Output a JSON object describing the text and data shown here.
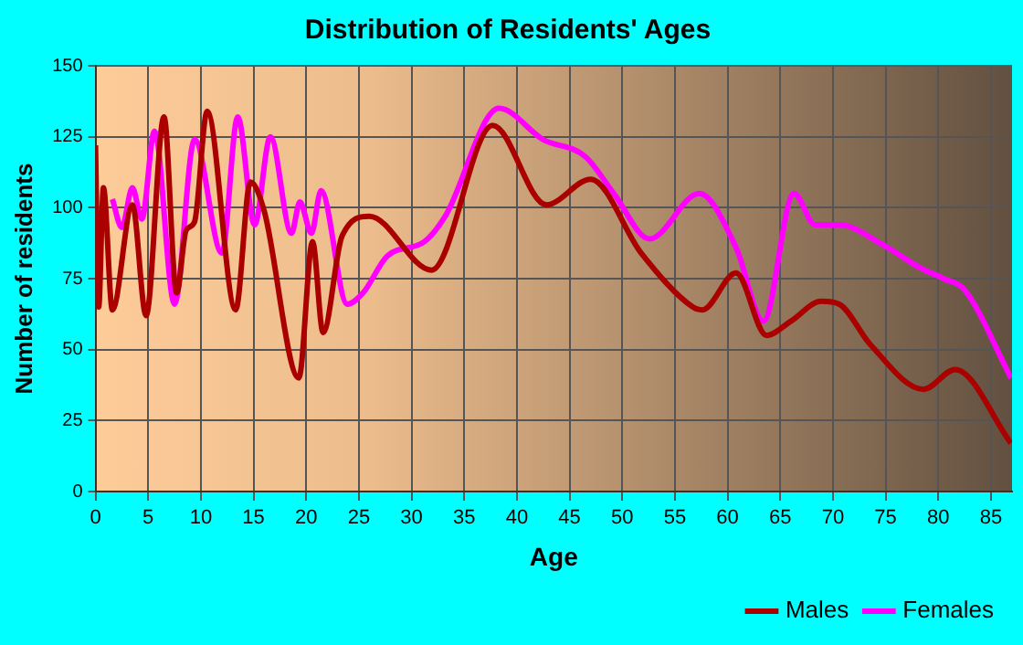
{
  "chart_data": {
    "type": "line",
    "title": "Distribution of Residents' Ages",
    "xlabel": "Age",
    "ylabel": "Number of residents",
    "xlim": [
      0,
      87
    ],
    "xticks": [
      0,
      5,
      10,
      15,
      20,
      25,
      30,
      35,
      40,
      45,
      50,
      55,
      60,
      65,
      70,
      75,
      80,
      85
    ],
    "ylim": [
      0,
      150
    ],
    "yticks": [
      0,
      25,
      50,
      75,
      100,
      125,
      150
    ],
    "grid": true,
    "legend": "bottom right",
    "marker": "none",
    "line_style": "solid",
    "series": [
      {
        "name": "Males",
        "color": "#aa0000",
        "x": [
          0,
          0.3,
          0.75,
          1.6,
          3.5,
          4.8,
          6.5,
          7.7,
          8.6,
          9.4,
          10.6,
          13.3,
          14.7,
          16,
          19.3,
          20.6,
          21.6,
          23.4,
          26,
          31.9,
          37.7,
          42.8,
          47,
          51.8,
          56.7,
          57.6,
          60.8,
          63.7,
          66,
          68.9,
          70.6,
          73.5,
          78.6,
          81.6,
          86.9
        ],
        "values": [
          122,
          65,
          107,
          64,
          101,
          62,
          132,
          70,
          92,
          95,
          134,
          64,
          109,
          99,
          40,
          88,
          56,
          90,
          97,
          78,
          129,
          101,
          110,
          84,
          65,
          64,
          77,
          55,
          60,
          67,
          66,
          52,
          36,
          43,
          17
        ]
      },
      {
        "name": "Females",
        "color": "#ff00ff",
        "x": [
          1.6,
          2.5,
          3.5,
          4.4,
          5.6,
          7.5,
          9.4,
          12,
          13.5,
          15.1,
          16.6,
          18.6,
          19.4,
          20.5,
          21.4,
          23.9,
          25.4,
          27.7,
          31.2,
          33.2,
          38.3,
          42.5,
          46.5,
          49.2,
          52.6,
          57.3,
          60.8,
          63.4,
          66.3,
          68.3,
          70.6,
          74.7,
          78.2,
          80.5,
          82.5,
          86.9
        ],
        "values": [
          103,
          93,
          107,
          96,
          127,
          66,
          124,
          84,
          132,
          94,
          125,
          91,
          102,
          91,
          106,
          66,
          70,
          83,
          88,
          97,
          135,
          124,
          118,
          105,
          89,
          105,
          86,
          60,
          105,
          94,
          94,
          87,
          79,
          75,
          71,
          40
        ]
      }
    ]
  }
}
